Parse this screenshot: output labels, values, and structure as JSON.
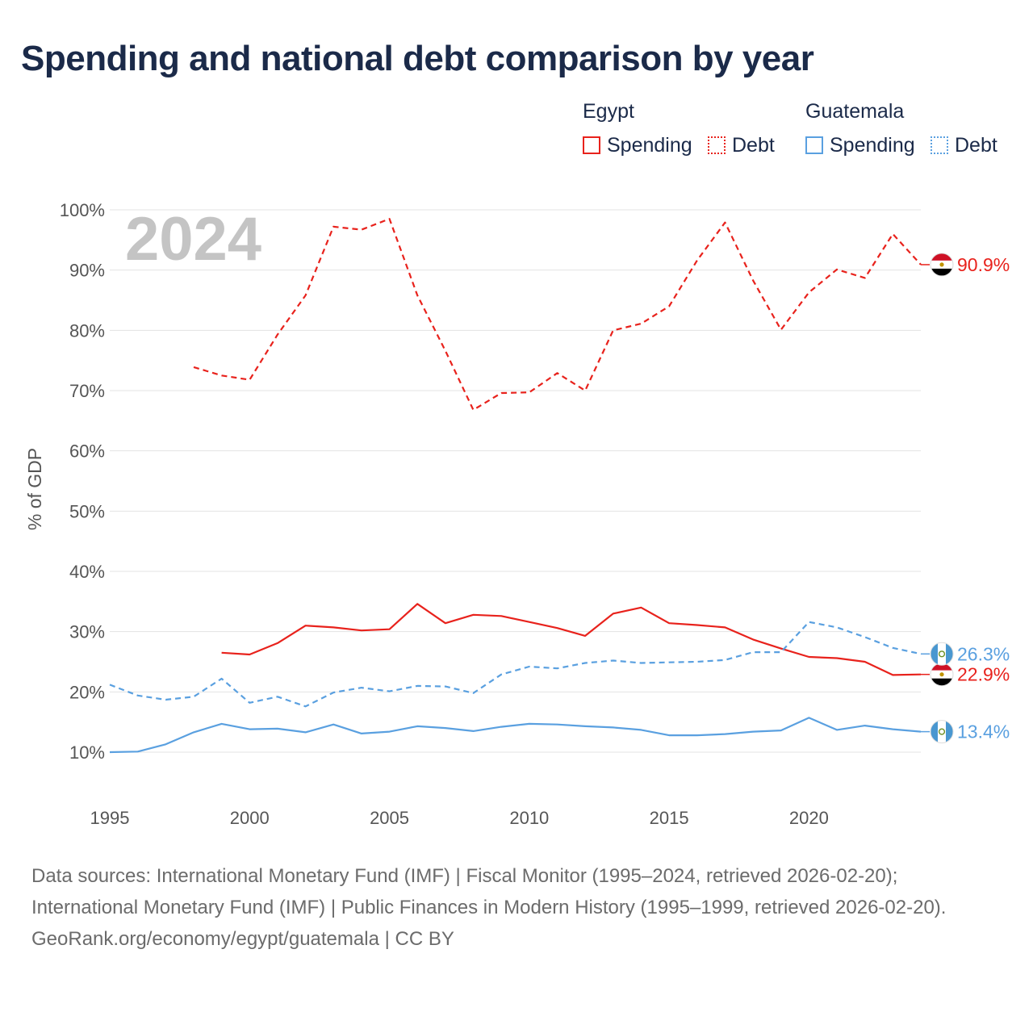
{
  "title": "Spending and national debt comparison by year",
  "legend": {
    "groups": [
      {
        "name": "Egypt",
        "color": "#e8221c",
        "items": [
          {
            "label": "Spending",
            "style": "solid"
          },
          {
            "label": "Debt",
            "style": "dotted"
          }
        ]
      },
      {
        "name": "Guatemala",
        "color": "#5aa0e0",
        "items": [
          {
            "label": "Spending",
            "style": "solid"
          },
          {
            "label": "Debt",
            "style": "dotted"
          }
        ]
      }
    ]
  },
  "chart_data": {
    "type": "line",
    "title": "Spending and national debt comparison by year",
    "xlabel": "",
    "ylabel": "% of GDP",
    "xlim": [
      1995,
      2024
    ],
    "ylim": [
      10,
      100
    ],
    "grid": true,
    "x_ticks": [
      "1995",
      "2000",
      "2005",
      "2010",
      "2015",
      "2020"
    ],
    "y_ticks": [
      "10%",
      "20%",
      "30%",
      "40%",
      "50%",
      "60%",
      "70%",
      "80%",
      "90%",
      "100%"
    ],
    "year_marker": "2024",
    "series": [
      {
        "name": "Egypt Debt",
        "country": "Egypt",
        "measure": "Debt",
        "color": "#e8221c",
        "dash": "dashed",
        "x": [
          1998,
          1999,
          2000,
          2001,
          2002,
          2003,
          2004,
          2005,
          2006,
          2007,
          2008,
          2009,
          2010,
          2011,
          2012,
          2013,
          2014,
          2015,
          2016,
          2017,
          2018,
          2019,
          2020,
          2021,
          2022,
          2023,
          2024
        ],
        "values": [
          73.9,
          72.5,
          71.8,
          79.3,
          85.8,
          97.2,
          96.7,
          98.5,
          85.8,
          76.6,
          66.8,
          69.6,
          69.7,
          72.9,
          70.0,
          80.0,
          81.1,
          84.0,
          91.6,
          97.9,
          88.3,
          80.1,
          86.3,
          90.1,
          88.7,
          96.0,
          90.9
        ],
        "end_label": "90.9%",
        "flag": "egypt"
      },
      {
        "name": "Egypt Spending",
        "country": "Egypt",
        "measure": "Spending",
        "color": "#e8221c",
        "dash": "solid",
        "x": [
          1999,
          2000,
          2001,
          2002,
          2003,
          2004,
          2005,
          2006,
          2007,
          2008,
          2009,
          2010,
          2011,
          2012,
          2013,
          2014,
          2015,
          2016,
          2017,
          2018,
          2019,
          2020,
          2021,
          2022,
          2023,
          2024
        ],
        "values": [
          26.5,
          26.2,
          28.1,
          31.0,
          30.7,
          30.2,
          30.4,
          34.6,
          31.4,
          32.8,
          32.6,
          31.6,
          30.6,
          29.3,
          33.0,
          34.0,
          31.4,
          31.1,
          30.7,
          28.7,
          27.2,
          25.8,
          25.6,
          25.0,
          22.8,
          22.9
        ],
        "end_label": "22.9%",
        "flag": "egypt"
      },
      {
        "name": "Guatemala Debt",
        "country": "Guatemala",
        "measure": "Debt",
        "color": "#5aa0e0",
        "dash": "dashed",
        "x": [
          1995,
          1996,
          1997,
          1998,
          1999,
          2000,
          2001,
          2002,
          2003,
          2004,
          2005,
          2006,
          2007,
          2008,
          2009,
          2010,
          2011,
          2012,
          2013,
          2014,
          2015,
          2016,
          2017,
          2018,
          2019,
          2020,
          2021,
          2022,
          2023,
          2024
        ],
        "values": [
          21.2,
          19.4,
          18.7,
          19.2,
          22.2,
          18.2,
          19.2,
          17.6,
          19.9,
          20.7,
          20.1,
          21.0,
          20.9,
          19.8,
          22.9,
          24.2,
          23.9,
          24.8,
          25.2,
          24.8,
          24.9,
          25.0,
          25.3,
          26.6,
          26.6,
          31.6,
          30.7,
          29.1,
          27.3,
          26.3
        ],
        "end_label": "26.3%",
        "flag": "guatemala"
      },
      {
        "name": "Guatemala Spending",
        "country": "Guatemala",
        "measure": "Spending",
        "color": "#5aa0e0",
        "dash": "solid",
        "x": [
          1995,
          1996,
          1997,
          1998,
          1999,
          2000,
          2001,
          2002,
          2003,
          2004,
          2005,
          2006,
          2007,
          2008,
          2009,
          2010,
          2011,
          2012,
          2013,
          2014,
          2015,
          2016,
          2017,
          2018,
          2019,
          2020,
          2021,
          2022,
          2023,
          2024
        ],
        "values": [
          10.0,
          10.1,
          11.3,
          13.3,
          14.7,
          13.8,
          13.9,
          13.3,
          14.6,
          13.1,
          13.4,
          14.3,
          14.0,
          13.5,
          14.2,
          14.7,
          14.6,
          14.3,
          14.1,
          13.7,
          12.8,
          12.8,
          13.0,
          13.4,
          13.6,
          15.7,
          13.7,
          14.4,
          13.8,
          13.4
        ],
        "end_label": "13.4%",
        "flag": "guatemala"
      }
    ]
  },
  "footer": {
    "sources": "Data sources: International Monetary Fund (IMF) | Fiscal Monitor (1995–2024, retrieved 2026-02-20); International Monetary Fund (IMF) | Public Finances in Modern History (1995–1999, retrieved 2026-02-20).",
    "credit": "GeoRank.org/economy/egypt/guatemala | CC BY"
  }
}
